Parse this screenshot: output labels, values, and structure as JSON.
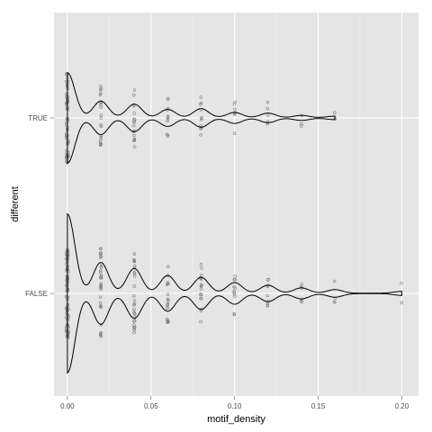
{
  "chart_data": {
    "type": "violin",
    "orientation": "horizontal",
    "title": "",
    "xlabel": "motif_density",
    "ylabel": "different",
    "xlim": [
      -0.008,
      0.21
    ],
    "x_ticks": [
      0.0,
      0.05,
      0.1,
      0.15,
      0.2
    ],
    "x_tick_labels": [
      "0.00",
      "0.05",
      "0.10",
      "0.15",
      "0.20"
    ],
    "categories": [
      "TRUE",
      "FALSE"
    ],
    "grid": true,
    "legend": "none",
    "colors": {
      "panel": "#e5e5e5",
      "grid_major": "#ffffff",
      "grid_minor": "#f2f2f2",
      "violin": "#000000",
      "points": "#7f7f7f",
      "tick_label": "#4d4d4d"
    },
    "points": {
      "TRUE": [
        {
          "x": 0.0,
          "n": 60
        },
        {
          "x": 0.02,
          "n": 22
        },
        {
          "x": 0.04,
          "n": 18
        },
        {
          "x": 0.06,
          "n": 11
        },
        {
          "x": 0.08,
          "n": 12
        },
        {
          "x": 0.1,
          "n": 7
        },
        {
          "x": 0.12,
          "n": 6
        },
        {
          "x": 0.14,
          "n": 3
        },
        {
          "x": 0.16,
          "n": 2
        }
      ],
      "FALSE": [
        {
          "x": 0.0,
          "n": 90
        },
        {
          "x": 0.02,
          "n": 35
        },
        {
          "x": 0.04,
          "n": 28
        },
        {
          "x": 0.06,
          "n": 20
        },
        {
          "x": 0.08,
          "n": 18
        },
        {
          "x": 0.1,
          "n": 12
        },
        {
          "x": 0.12,
          "n": 9
        },
        {
          "x": 0.14,
          "n": 6
        },
        {
          "x": 0.16,
          "n": 4
        },
        {
          "x": 0.2,
          "n": 2
        }
      ]
    }
  }
}
